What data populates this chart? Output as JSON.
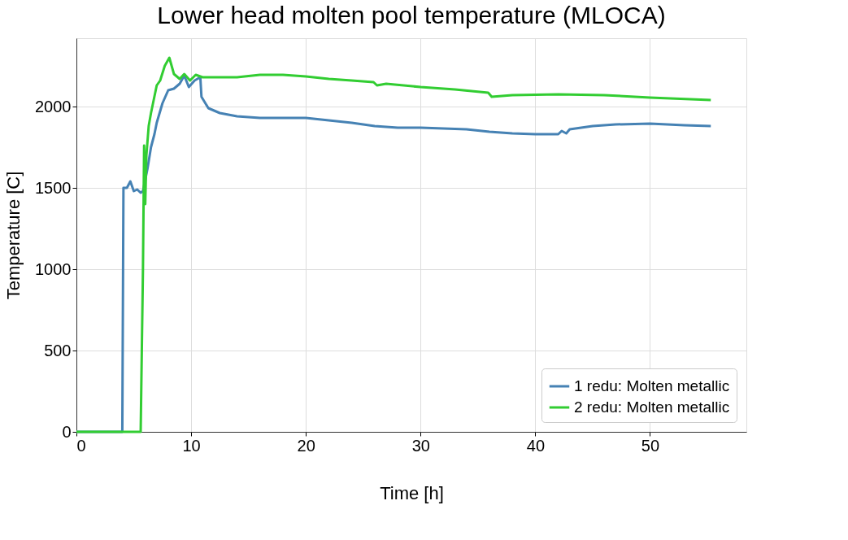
{
  "chart_data": {
    "type": "line",
    "title": "Lower head molten pool temperature (MLOCA)",
    "xlabel": "Time [h]",
    "ylabel": "Temperature [C]",
    "xlim": [
      0,
      58.4
    ],
    "ylim": [
      0,
      2420
    ],
    "xticks": [
      0,
      10,
      20,
      30,
      40,
      50
    ],
    "yticks": [
      0,
      500,
      1000,
      1500,
      2000
    ],
    "grid": true,
    "legend": "bottom right",
    "series": [
      {
        "name": "1 redu: Molten metallic",
        "color": "#4682b4",
        "x": [
          0,
          4,
          4.1,
          4.4,
          4.7,
          5.0,
          5.3,
          5.6,
          5.8,
          6.2,
          6.5,
          6.8,
          7.0,
          7.5,
          8,
          8.5,
          9,
          9.4,
          9.8,
          10.3,
          10.8,
          10.9,
          11.5,
          12.5,
          14,
          16,
          18,
          20,
          22,
          24,
          26,
          28,
          30,
          32,
          34,
          36,
          38,
          40,
          42,
          42.3,
          42.7,
          43,
          45,
          47,
          50,
          53,
          55.3
        ],
        "values": [
          0,
          0,
          1500,
          1500,
          1540,
          1480,
          1490,
          1470,
          1480,
          1620,
          1750,
          1830,
          1900,
          2020,
          2100,
          2110,
          2140,
          2190,
          2120,
          2160,
          2180,
          2060,
          1990,
          1960,
          1940,
          1930,
          1930,
          1930,
          1915,
          1900,
          1880,
          1870,
          1870,
          1865,
          1860,
          1845,
          1835,
          1830,
          1830,
          1850,
          1835,
          1860,
          1880,
          1890,
          1895,
          1885,
          1880
        ]
      },
      {
        "name": "2 redu: Molten metallic",
        "color": "#32cd32",
        "x": [
          0,
          5.6,
          5.8,
          5.9,
          6.0,
          6.1,
          6.3,
          6.5,
          7.0,
          7.3,
          7.7,
          8.1,
          8.5,
          9,
          9.4,
          9.9,
          10.4,
          11,
          12,
          14,
          16,
          18,
          20,
          22,
          24,
          25.9,
          26.2,
          27,
          30,
          33,
          35.9,
          36.2,
          38,
          42,
          46,
          50,
          55.3
        ],
        "values": [
          0,
          0,
          1000,
          1760,
          1400,
          1700,
          1880,
          1960,
          2130,
          2160,
          2250,
          2300,
          2200,
          2170,
          2200,
          2160,
          2195,
          2180,
          2180,
          2180,
          2195,
          2195,
          2185,
          2170,
          2160,
          2150,
          2130,
          2140,
          2120,
          2105,
          2085,
          2060,
          2070,
          2075,
          2070,
          2055,
          2040
        ]
      }
    ]
  }
}
